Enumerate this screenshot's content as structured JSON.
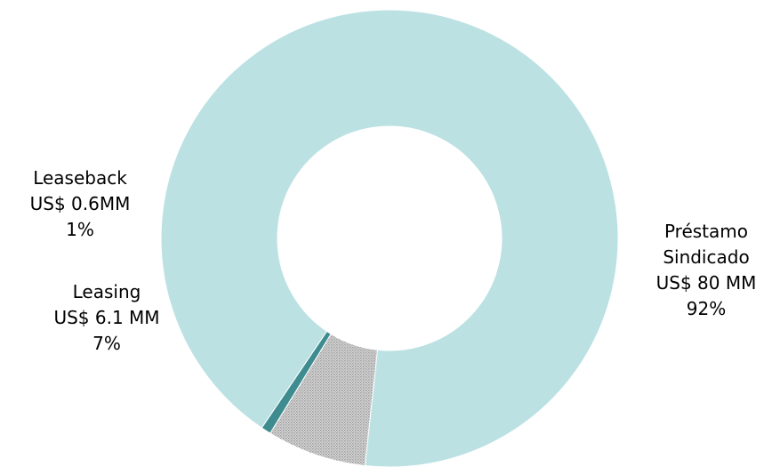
{
  "chart_data": {
    "type": "pie",
    "variant": "donut",
    "title": "",
    "slices": [
      {
        "key": "prestamo",
        "lines": [
          "Préstamo",
          "Sindicado",
          "US$ 80 MM",
          "92%"
        ],
        "value": 80,
        "percent": 92,
        "color": "#bce1e3",
        "pattern": "solid"
      },
      {
        "key": "leasing",
        "lines": [
          "Leasing",
          "US$ 6.1 MM",
          "7%"
        ],
        "value": 6.1,
        "percent": 7,
        "color": "#c8c8c8",
        "pattern": "dotted-grey"
      },
      {
        "key": "leaseback",
        "lines": [
          "Leaseback",
          "US$ 0.6MM",
          "1%"
        ],
        "value": 0.6,
        "percent": 1,
        "color": "#3e8c90",
        "pattern": "solid"
      }
    ],
    "legend": "none"
  }
}
